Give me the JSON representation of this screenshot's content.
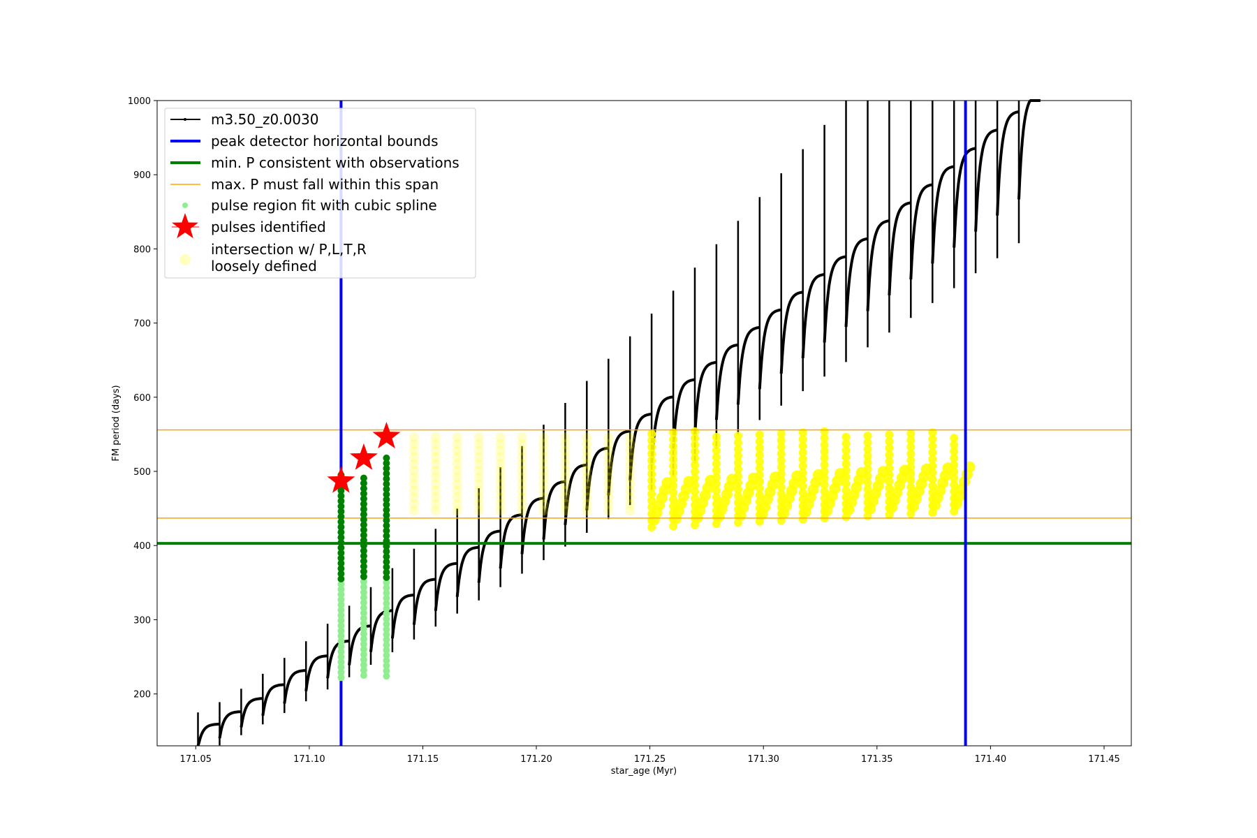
{
  "chart_data": {
    "type": "scatter",
    "xlabel": "star_age (Myr)",
    "ylabel": "FM period (days)",
    "xlim": [
      171.033,
      171.462
    ],
    "ylim": [
      130,
      1000
    ],
    "xticks": [
      171.05,
      171.1,
      171.15,
      171.2,
      171.25,
      171.3,
      171.35,
      171.4,
      171.45
    ],
    "xtick_labels": [
      "171.05",
      "171.10",
      "171.15",
      "171.20",
      "171.25",
      "171.30",
      "171.35",
      "171.40",
      "171.45"
    ],
    "yticks": [
      200,
      300,
      400,
      500,
      600,
      700,
      800,
      900,
      1000
    ],
    "ytick_labels": [
      "200",
      "300",
      "400",
      "500",
      "600",
      "700",
      "800",
      "900",
      "1000"
    ],
    "grid": false,
    "legend_position": "top-left",
    "track": {
      "name": "m3.50_z0.0030",
      "color": "#000000",
      "age_start": 171.051,
      "age_end": 171.422,
      "pulse_count": 39,
      "base_period_start": 145,
      "base_period_end": 985,
      "spike_period_start": 175,
      "spike_period_end": 1000
    },
    "vertical_lines": {
      "name": "peak detector horizontal bounds",
      "color": "#0000ff",
      "x": [
        171.114,
        171.389
      ]
    },
    "min_period_line": {
      "name": "min. P consistent with observations",
      "color": "#008000",
      "y": 403
    },
    "max_period_span": {
      "name": "max. P must fall within this span",
      "color": "#ffa500",
      "y": [
        437,
        556
      ]
    },
    "pulse_fit_regions": {
      "name": "pulse region fit with cubic spline",
      "color_light": "#90ee90",
      "color_dark": "#008000",
      "columns": [
        {
          "x": 171.114,
          "y_min": 222,
          "y_max": 497
        },
        {
          "x": 171.124,
          "y_min": 225,
          "y_max": 496
        },
        {
          "x": 171.134,
          "y_min": 224,
          "y_max": 520
        }
      ]
    },
    "pulses_identified": {
      "name": "pulses identified",
      "color": "#ff0000",
      "points": [
        {
          "x": 171.114,
          "y": 487
        },
        {
          "x": 171.124,
          "y": 518
        },
        {
          "x": 171.134,
          "y": 547
        }
      ]
    },
    "intersection": {
      "name": "intersection w/ P,L,T,R",
      "name_line2": "loosely defined",
      "color": "#ffff00"
    }
  }
}
